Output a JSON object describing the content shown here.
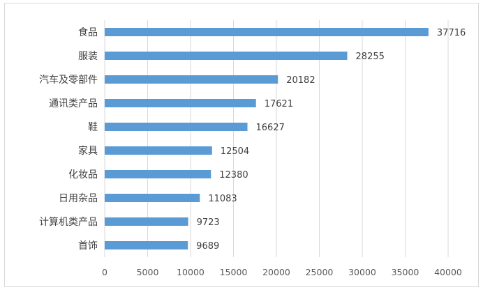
{
  "chart_data": {
    "type": "bar",
    "orientation": "horizontal",
    "categories": [
      "食品",
      "服装",
      "汽车及零部件",
      "通讯类产品",
      "鞋",
      "家具",
      "化妆品",
      "日用杂品",
      "计算机类产品",
      "首饰"
    ],
    "values": [
      37716,
      28255,
      20182,
      17621,
      16627,
      12504,
      12380,
      11083,
      9723,
      9689
    ],
    "value_labels": [
      "37716",
      "28255",
      "20182",
      "17621",
      "16627",
      "12504",
      "12380",
      "11083",
      "9723",
      "9689"
    ],
    "xlim": [
      0,
      40000
    ],
    "x_ticks": [
      0,
      5000,
      10000,
      15000,
      20000,
      25000,
      30000,
      35000,
      40000
    ],
    "x_tick_labels": [
      "0",
      "5000",
      "10000",
      "15000",
      "20000",
      "25000",
      "30000",
      "35000",
      "40000"
    ],
    "title": "",
    "xlabel": "",
    "ylabel": "",
    "grid": "vertical",
    "legend": "none",
    "bar_color": "#5b9bd5",
    "grid_color": "#d9d9d9"
  }
}
